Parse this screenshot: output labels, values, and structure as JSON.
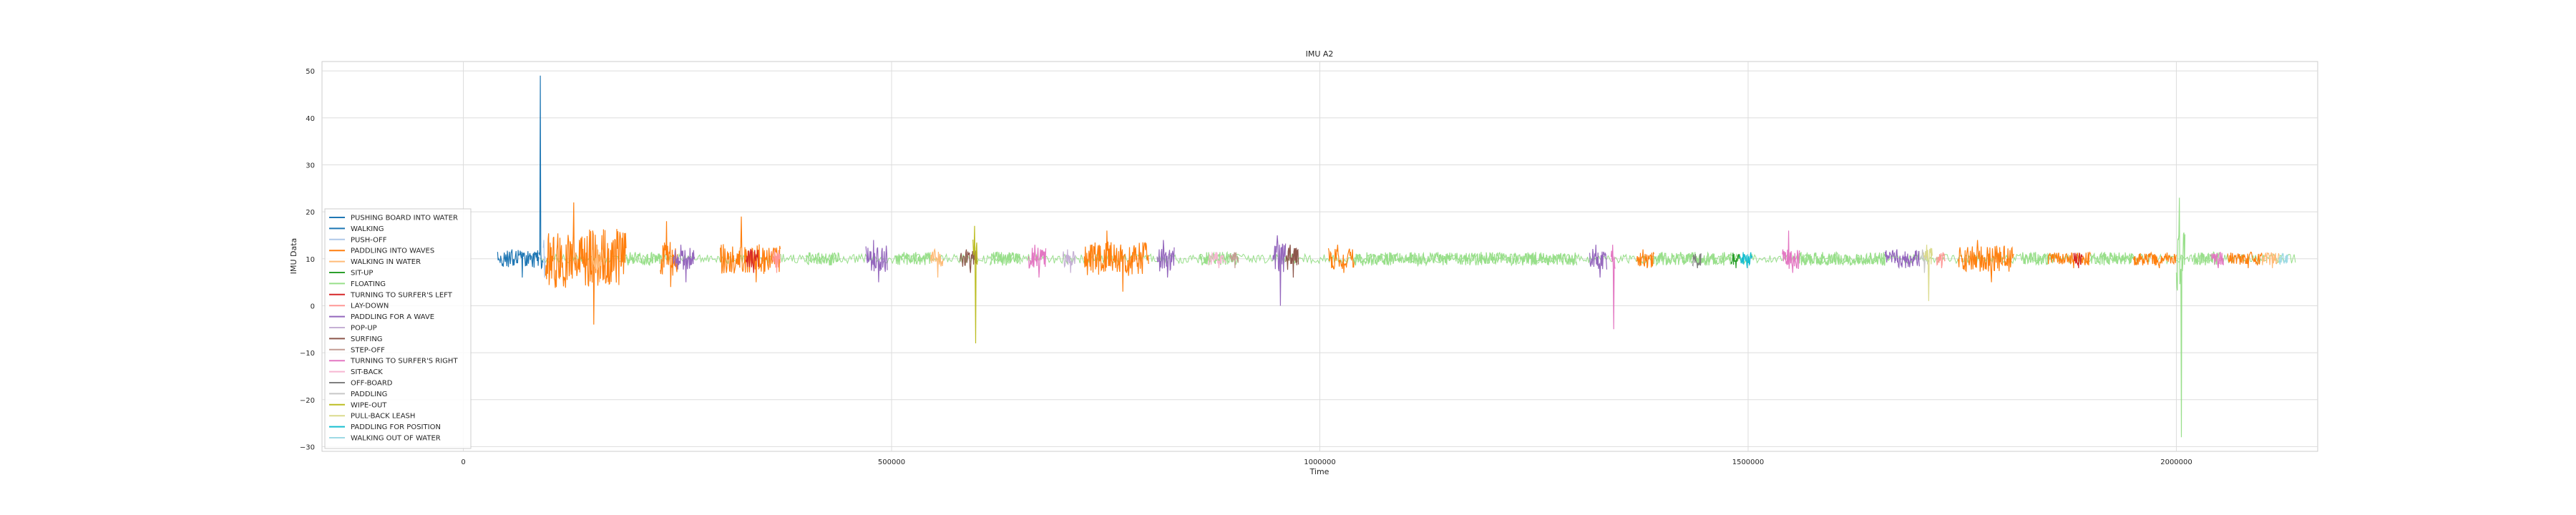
{
  "chart_data": {
    "type": "line",
    "title": "IMU A2",
    "xlabel": "Time",
    "ylabel": "IMU Data",
    "xlim": [
      -165000,
      2165000
    ],
    "ylim": [
      -31,
      52
    ],
    "x_ticks": [
      0,
      500000,
      1000000,
      1500000,
      2000000
    ],
    "x_tick_labels": [
      "0",
      "500000",
      "1000000",
      "1500000",
      "2000000"
    ],
    "y_ticks": [
      -30,
      -20,
      -10,
      0,
      10,
      20,
      30,
      40,
      50
    ],
    "y_tick_labels": [
      "−30",
      "−20",
      "−10",
      "0",
      "10",
      "20",
      "30",
      "40",
      "50"
    ],
    "grid": true,
    "legend_position": "lower-left",
    "baseline": 10,
    "series": [
      {
        "name": "PUSHING BOARD INTO WATER",
        "color": "#1f77b4",
        "segments": [
          [
            88000,
            93000,
            49,
            8
          ]
        ]
      },
      {
        "name": "WALKING",
        "color": "#1f77b4",
        "segments": [
          [
            40000,
            88000,
            12,
            6
          ]
        ]
      },
      {
        "name": "PUSH-OFF",
        "color": "#aec7e8",
        "segments": [
          [
            93000,
            96000,
            14,
            6
          ]
        ]
      },
      {
        "name": "PADDLING INTO WAVES",
        "color": "#ff7f0e",
        "segments": [
          [
            96000,
            190000,
            22,
            -4
          ],
          [
            230000,
            250000,
            18,
            4
          ],
          [
            300000,
            370000,
            19,
            5
          ],
          [
            725000,
            800000,
            16,
            3
          ],
          [
            1010000,
            1040000,
            13,
            7
          ],
          [
            1370000,
            1390000,
            12,
            8
          ],
          [
            1745000,
            1810000,
            14,
            5
          ],
          [
            1850000,
            1900000,
            11,
            8
          ],
          [
            1950000,
            2000000,
            11,
            8
          ],
          [
            2060000,
            2100000,
            11,
            8
          ]
        ]
      },
      {
        "name": "WALKING IN WATER",
        "color": "#ffbb78",
        "segments": [
          [
            150000,
            165000,
            13,
            5
          ],
          [
            545000,
            560000,
            12,
            6
          ],
          [
            2100000,
            2120000,
            11,
            8
          ]
        ]
      },
      {
        "name": "SIT-UP",
        "color": "#2ca02c",
        "segments": [
          [
            1480000,
            1490000,
            11,
            8
          ]
        ]
      },
      {
        "name": "FLOATING",
        "color": "#98df8a",
        "segments": [
          [
            190000,
            230000,
            11,
            9
          ],
          [
            400000,
            440000,
            11,
            9
          ],
          [
            505000,
            545000,
            11,
            9
          ],
          [
            615000,
            650000,
            11,
            9
          ],
          [
            860000,
            905000,
            11,
            9
          ],
          [
            1040000,
            1300000,
            11,
            9
          ],
          [
            1390000,
            1480000,
            11,
            9
          ],
          [
            1560000,
            1660000,
            11,
            9
          ],
          [
            1820000,
            1850000,
            11,
            9
          ],
          [
            1900000,
            1950000,
            11,
            9
          ],
          [
            2020000,
            2050000,
            11,
            9
          ],
          [
            2000000,
            2010000,
            23,
            -28
          ]
        ]
      },
      {
        "name": "TURNING TO SURFER'S LEFT",
        "color": "#d62728",
        "segments": [
          [
            330000,
            345000,
            12,
            7
          ],
          [
            1880000,
            1890000,
            11,
            8
          ]
        ]
      },
      {
        "name": "LAY-DOWN",
        "color": "#ff9896",
        "segments": [
          [
            360000,
            370000,
            12,
            7
          ],
          [
            1720000,
            1730000,
            11,
            8
          ]
        ]
      },
      {
        "name": "PADDLING FOR A WAVE",
        "color": "#9467bd",
        "segments": [
          [
            245000,
            270000,
            13,
            5
          ],
          [
            470000,
            495000,
            14,
            5
          ],
          [
            810000,
            830000,
            14,
            6
          ],
          [
            945000,
            960000,
            15,
            0
          ],
          [
            1315000,
            1335000,
            13,
            6
          ],
          [
            1660000,
            1700000,
            12,
            8
          ]
        ]
      },
      {
        "name": "POP-UP",
        "color": "#c5b0d5",
        "segments": [
          [
            700000,
            715000,
            12,
            7
          ]
        ]
      },
      {
        "name": "SURFING",
        "color": "#8c564b",
        "segments": [
          [
            580000,
            600000,
            12,
            7
          ],
          [
            960000,
            975000,
            13,
            6
          ]
        ]
      },
      {
        "name": "STEP-OFF",
        "color": "#c49c94",
        "segments": [
          [
            895000,
            905000,
            11,
            8
          ]
        ]
      },
      {
        "name": "TURNING TO SURFER'S RIGHT",
        "color": "#e377c2",
        "segments": [
          [
            660000,
            680000,
            13,
            6
          ],
          [
            1340000,
            1345000,
            13,
            -5
          ],
          [
            1540000,
            1560000,
            16,
            7
          ],
          [
            2040000,
            2055000,
            11,
            8
          ]
        ]
      },
      {
        "name": "SIT-BACK",
        "color": "#f7b6d2",
        "segments": [
          [
            870000,
            890000,
            11,
            8
          ]
        ]
      },
      {
        "name": "OFF-BOARD",
        "color": "#7f7f7f",
        "segments": [
          [
            1435000,
            1445000,
            11,
            8
          ]
        ]
      },
      {
        "name": "PADDLING",
        "color": "#c7c7c7",
        "segments": [
          [
            1700000,
            1710000,
            12,
            7
          ]
        ]
      },
      {
        "name": "WIPE-OUT",
        "color": "#bcbd22",
        "segments": [
          [
            595000,
            600000,
            17,
            -8
          ]
        ]
      },
      {
        "name": "PULL-BACK LEASH",
        "color": "#dbdb8d",
        "segments": [
          [
            1705000,
            1715000,
            13,
            1
          ]
        ]
      },
      {
        "name": "PADDLING FOR POSITION",
        "color": "#17becf",
        "segments": [
          [
            1490000,
            1505000,
            11,
            8
          ]
        ]
      },
      {
        "name": "WALKING OUT OF WATER",
        "color": "#9edae5",
        "segments": [
          [
            2120000,
            2130000,
            11,
            9
          ]
        ]
      }
    ]
  }
}
